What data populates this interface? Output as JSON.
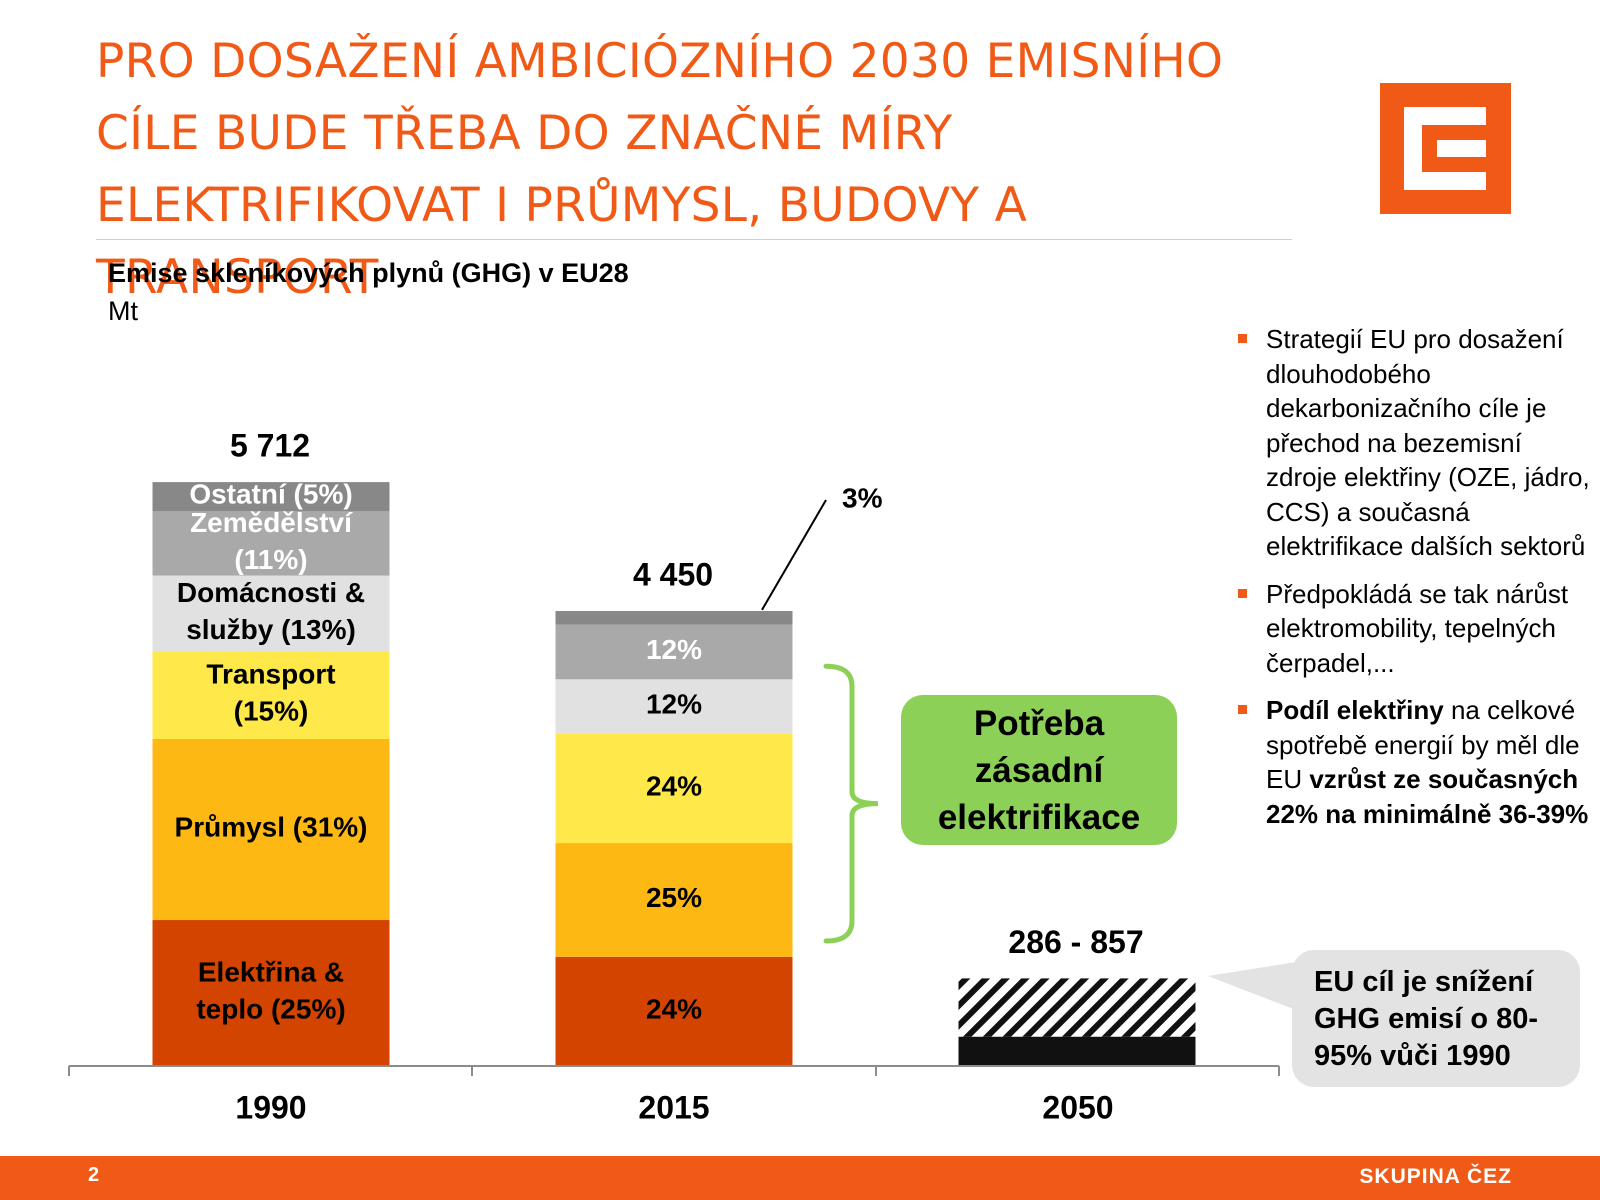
{
  "slide": {
    "title": "PRO DOSAŽENÍ AMBICIÓZNÍHO 2030 EMISNÍHO CÍLE BUDE TŘEBA DO ZNAČNÉ MÍRY ELEKTRIFIKOVAT I PRŮMYSL, BUDOVY A TRANSPORT",
    "page_number": "2",
    "brand": "SKUPINA ČEZ",
    "logo_icon": "cez-logo-icon",
    "accent_color": "#f05a16"
  },
  "chart_data": {
    "type": "bar",
    "stacked": true,
    "title": "Emise skleníkových plynů (GHG) v EU28",
    "ylabel": "Mt",
    "ylim": [
      0,
      6300
    ],
    "categories": [
      "1990",
      "2015",
      "2050"
    ],
    "totals": [
      "5 712",
      "4 450",
      "286 - 857"
    ],
    "series": [
      {
        "name": "Elektřina & teplo (25%)",
        "color": "#d34400",
        "text_color": "#000000",
        "values": [
          1428,
          1068,
          0
        ],
        "labels": [
          "Elektřina & teplo (25%)",
          "24%",
          ""
        ]
      },
      {
        "name": "Průmysl (31%)",
        "color": "#fdb813",
        "text_color": "#000000",
        "values": [
          1771,
          1113,
          0
        ],
        "labels": [
          "Průmysl (31%)",
          "25%",
          ""
        ]
      },
      {
        "name": "Transport (15%)",
        "color": "#ffe94a",
        "text_color": "#000000",
        "values": [
          857,
          1068,
          0
        ],
        "labels": [
          "Transport (15%)",
          "24%",
          ""
        ]
      },
      {
        "name": "Domácnosti & služby (13%)",
        "color": "#e1e1e1",
        "text_color": "#000000",
        "values": [
          742,
          534,
          0
        ],
        "labels": [
          "Domácnosti & služby (13%)",
          "12%",
          ""
        ]
      },
      {
        "name": "Zemědělství (11%)",
        "color": "#a9a9a9",
        "text_color": "#ffffff",
        "values": [
          628,
          534,
          0
        ],
        "labels": [
          "Zemědělství (11%)",
          "12%",
          ""
        ]
      },
      {
        "name": "Ostatní (5%)",
        "color": "#888888",
        "text_color": "#ffffff",
        "values": [
          286,
          134,
          0
        ],
        "labels": [
          "Ostatní (5%)",
          "",
          ""
        ]
      }
    ],
    "range_2050": {
      "min": 286,
      "max": 857,
      "min_color": "#111111",
      "range_pattern": "diagonal-hatch"
    },
    "annotations": {
      "small_segment_label": "3%",
      "electrification_callout": "Potřeba zásadní elektrifikace",
      "target_callout": "EU cíl je snížení GHG emisí o 80-95% vůči 1990"
    }
  },
  "bullets": [
    {
      "parts": [
        {
          "text": "Strategií EU pro dosažení dlouhodobého dekarbonizačního cíle je přechod na bezemisní zdroje elektřiny (OZE, jádro, CCS) a současná elektrifikace dalších sektorů",
          "bold": false
        }
      ]
    },
    {
      "parts": [
        {
          "text": "Předpokládá se tak nárůst elektromobility, tepelných čerpadel,...",
          "bold": false
        }
      ]
    },
    {
      "parts": [
        {
          "text": "Podíl elektřiny",
          "bold": true
        },
        {
          "text": " na celkové spotřebě energií by měl dle EU ",
          "bold": false
        },
        {
          "text": "vzrůst ze současných 22% na minimálně 36-39%",
          "bold": true
        }
      ]
    }
  ]
}
